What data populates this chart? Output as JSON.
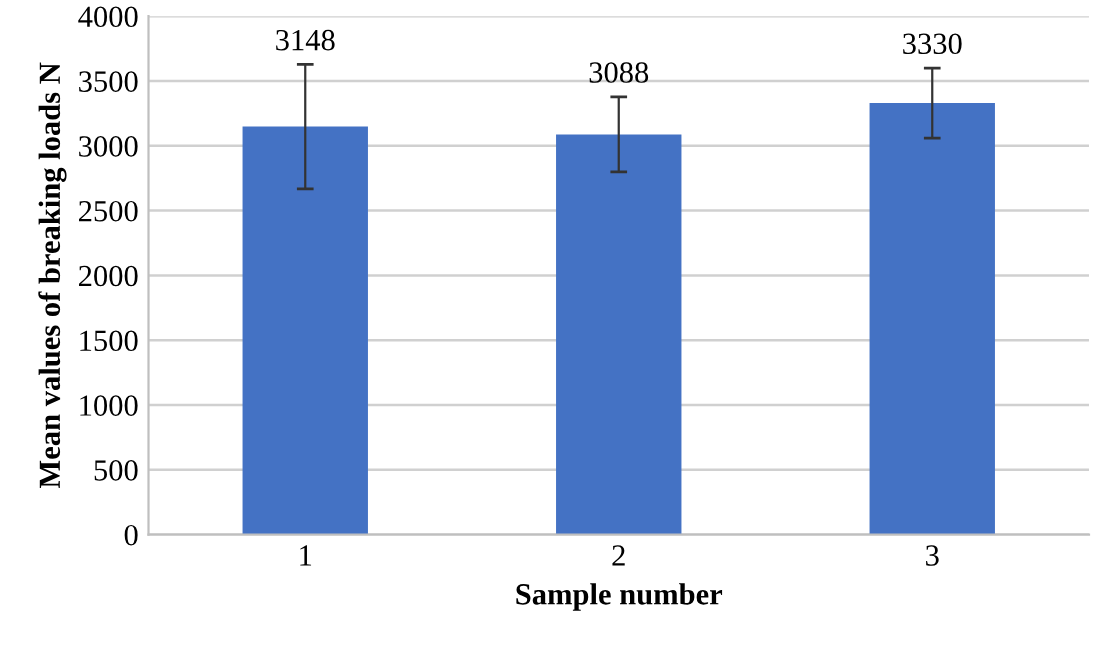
{
  "chart_data": {
    "type": "bar",
    "xlabel": "Sample number",
    "ylabel": "Mean values of breaking loads N",
    "categories": [
      "1",
      "2",
      "3"
    ],
    "values": [
      3148,
      3088,
      3330
    ],
    "errors": [
      480,
      290,
      270
    ],
    "color": "#4472c4",
    "data_labels": true,
    "ylim": [
      0,
      4000
    ],
    "yticks": [
      0,
      500,
      1000,
      1500,
      2000,
      2500,
      3000,
      3500,
      4000
    ],
    "grid": "y"
  }
}
